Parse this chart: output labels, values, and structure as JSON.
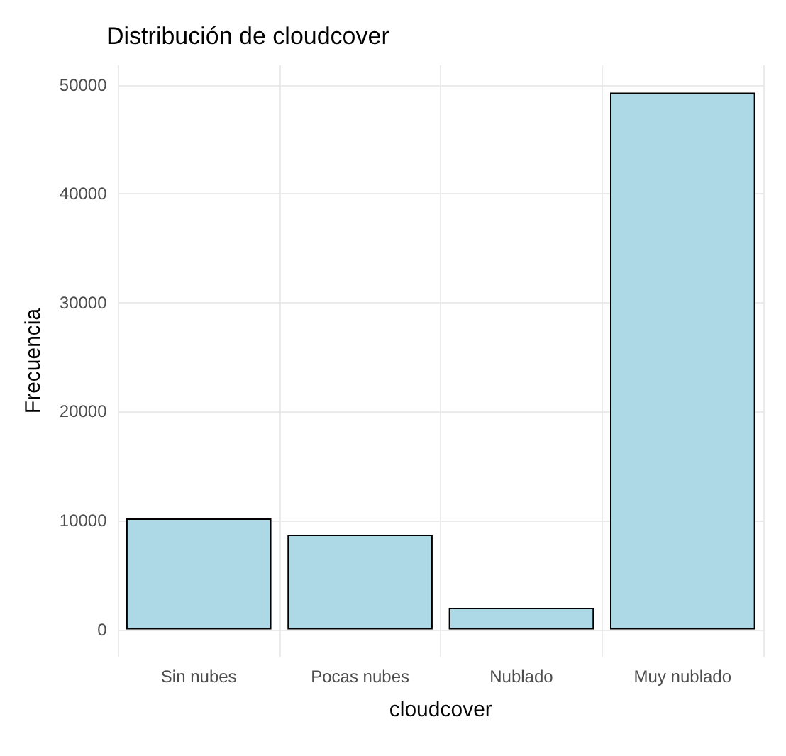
{
  "chart_data": {
    "type": "bar",
    "title": "Distribución de cloudcover",
    "xlabel": "cloudcover",
    "ylabel": "Frecuencia",
    "categories": [
      "Sin nubes",
      "Pocas nubes",
      "Nublado",
      "Muy nublado"
    ],
    "values": [
      10200,
      8700,
      2000,
      49300
    ],
    "color": "#add8e6",
    "ylim": [
      -2500,
      51800
    ],
    "yticks": [
      0,
      10000,
      20000,
      30000,
      40000,
      50000
    ],
    "grid": true
  }
}
